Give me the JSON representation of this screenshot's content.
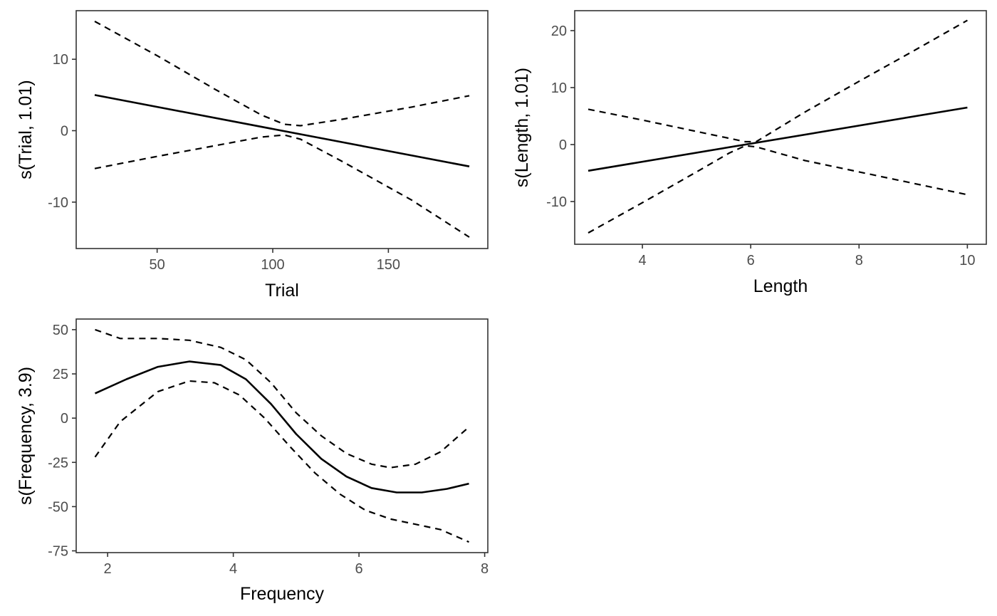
{
  "chart_data": [
    {
      "type": "line",
      "xlabel": "Trial",
      "ylabel": "s(Trial, 1.01)",
      "xlim": [
        15,
        193
      ],
      "ylim": [
        -16.5,
        16.8
      ],
      "xticks": [
        50,
        100,
        150
      ],
      "yticks": [
        -10,
        0,
        10
      ],
      "xtick_labels": [
        "50",
        "100",
        "150"
      ],
      "ytick_labels": [
        "-10",
        "0",
        "10"
      ],
      "series": [
        {
          "role": "fit",
          "style": "solid",
          "x": [
            23,
            185
          ],
          "y": [
            5.0,
            -5.0
          ]
        },
        {
          "role": "upper",
          "style": "dashed",
          "x": [
            23,
            50,
            75,
            95,
            105,
            112,
            130,
            160,
            185
          ],
          "y": [
            15.3,
            10.5,
            5.8,
            2.2,
            0.9,
            0.7,
            1.6,
            3.3,
            4.9
          ]
        },
        {
          "role": "lower",
          "style": "dashed",
          "x": [
            23,
            50,
            75,
            95,
            105,
            112,
            130,
            160,
            185
          ],
          "y": [
            -5.3,
            -3.6,
            -2.1,
            -0.9,
            -0.6,
            -1.2,
            -4.3,
            -9.7,
            -14.9
          ]
        }
      ]
    },
    {
      "type": "line",
      "xlabel": "Length",
      "ylabel": "s(Length, 1.01)",
      "xlim": [
        2.75,
        10.35
      ],
      "ylim": [
        -17.5,
        23.5
      ],
      "xticks": [
        4,
        6,
        8,
        10
      ],
      "yticks": [
        -10,
        0,
        10,
        20
      ],
      "xtick_labels": [
        "4",
        "6",
        "8",
        "10"
      ],
      "ytick_labels": [
        "-10",
        "0",
        "10",
        "20"
      ],
      "series": [
        {
          "role": "fit",
          "style": "solid",
          "x": [
            3,
            10
          ],
          "y": [
            -4.6,
            6.5
          ]
        },
        {
          "role": "upper",
          "style": "dashed",
          "x": [
            3,
            4,
            5,
            5.6,
            5.9,
            6.1,
            7,
            8,
            9,
            10
          ],
          "y": [
            6.2,
            4.3,
            2.3,
            1.1,
            0.5,
            0.5,
            5.7,
            11.1,
            16.4,
            21.8
          ]
        },
        {
          "role": "lower",
          "style": "dashed",
          "x": [
            3,
            4,
            5,
            5.6,
            5.9,
            6.1,
            7,
            8,
            9,
            10
          ],
          "y": [
            -15.5,
            -10.2,
            -4.8,
            -1.5,
            -0.2,
            -0.4,
            -2.8,
            -4.8,
            -6.8,
            -8.8
          ]
        }
      ]
    },
    {
      "type": "line",
      "xlabel": "Frequency",
      "ylabel": "s(Frequency, 3.9)",
      "xlim": [
        1.5,
        8.05
      ],
      "ylim": [
        -76,
        56
      ],
      "xticks": [
        2,
        4,
        6,
        8
      ],
      "yticks": [
        -75,
        -50,
        -25,
        0,
        25,
        50
      ],
      "xtick_labels": [
        "2",
        "4",
        "6",
        "8"
      ],
      "ytick_labels": [
        "-75",
        "-50",
        "-25",
        "0",
        "25",
        "50"
      ],
      "series": [
        {
          "role": "fit",
          "style": "solid",
          "x": [
            1.8,
            2.3,
            2.8,
            3.3,
            3.8,
            4.2,
            4.6,
            5.0,
            5.4,
            5.8,
            6.2,
            6.6,
            7.0,
            7.4,
            7.75
          ],
          "y": [
            14,
            22,
            29,
            32,
            30,
            22,
            8,
            -9,
            -23,
            -33,
            -39.5,
            -42,
            -42,
            -40,
            -37
          ]
        },
        {
          "role": "upper",
          "style": "dashed",
          "x": [
            1.8,
            2.2,
            2.8,
            3.3,
            3.8,
            4.2,
            4.6,
            5.0,
            5.4,
            5.8,
            6.2,
            6.5,
            6.9,
            7.3,
            7.75
          ],
          "y": [
            50,
            45,
            45,
            44,
            40,
            33,
            20,
            3,
            -10,
            -20,
            -26,
            -28,
            -26,
            -19,
            -5
          ]
        },
        {
          "role": "lower",
          "style": "dashed",
          "x": [
            1.8,
            2.2,
            2.8,
            3.3,
            3.7,
            4.1,
            4.5,
            4.9,
            5.3,
            5.7,
            6.1,
            6.5,
            6.9,
            7.3,
            7.75
          ],
          "y": [
            -22,
            -2,
            15,
            21,
            20,
            13,
            0,
            -16,
            -31,
            -43,
            -52,
            -57,
            -60,
            -63,
            -70
          ]
        }
      ]
    }
  ]
}
